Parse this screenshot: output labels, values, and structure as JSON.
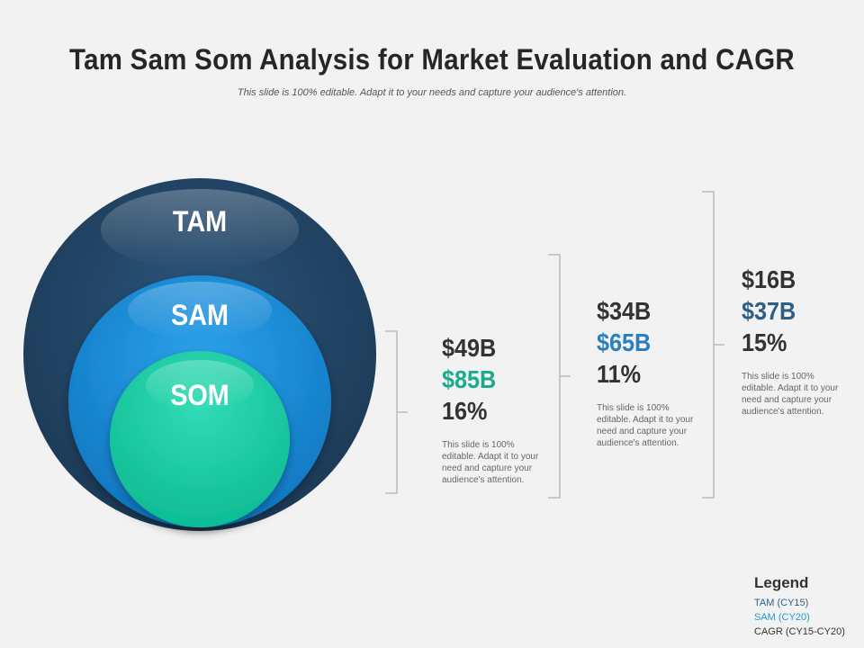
{
  "title": "Tam Sam Som Analysis for Market Evaluation and CAGR",
  "subtitle": "This slide is 100% editable. Adapt it to your needs and capture your audience's attention.",
  "circles": {
    "tam": "TAM",
    "sam": "SAM",
    "som": "SOM"
  },
  "columns": [
    {
      "tam": "$49B",
      "sam": "$85B",
      "cagr": "16%",
      "desc": "This slide is 100% editable. Adapt it to your need and capture your audience's attention."
    },
    {
      "tam": "$34B",
      "sam": "$65B",
      "cagr": "11%",
      "desc": "This slide is 100% editable. Adapt it to your need and capture your audience's attention."
    },
    {
      "tam": "$16B",
      "sam": "$37B",
      "cagr": "15%",
      "desc": "This slide is 100% editable. Adapt it to your need and capture your audience's attention."
    }
  ],
  "legend": {
    "title": "Legend",
    "items": [
      "TAM (CY15)",
      "SAM (CY20)",
      "CAGR (CY15-CY20)"
    ]
  },
  "colors": {
    "tam": "#1e4060",
    "sam": "#1a8ad4",
    "som": "#14c4a0",
    "teal_text": "#1aaa8c",
    "blue_text": "#2a7fc0",
    "navy_text": "#2d5f86",
    "text": "#333333",
    "bracket": "#bbbbbb"
  }
}
